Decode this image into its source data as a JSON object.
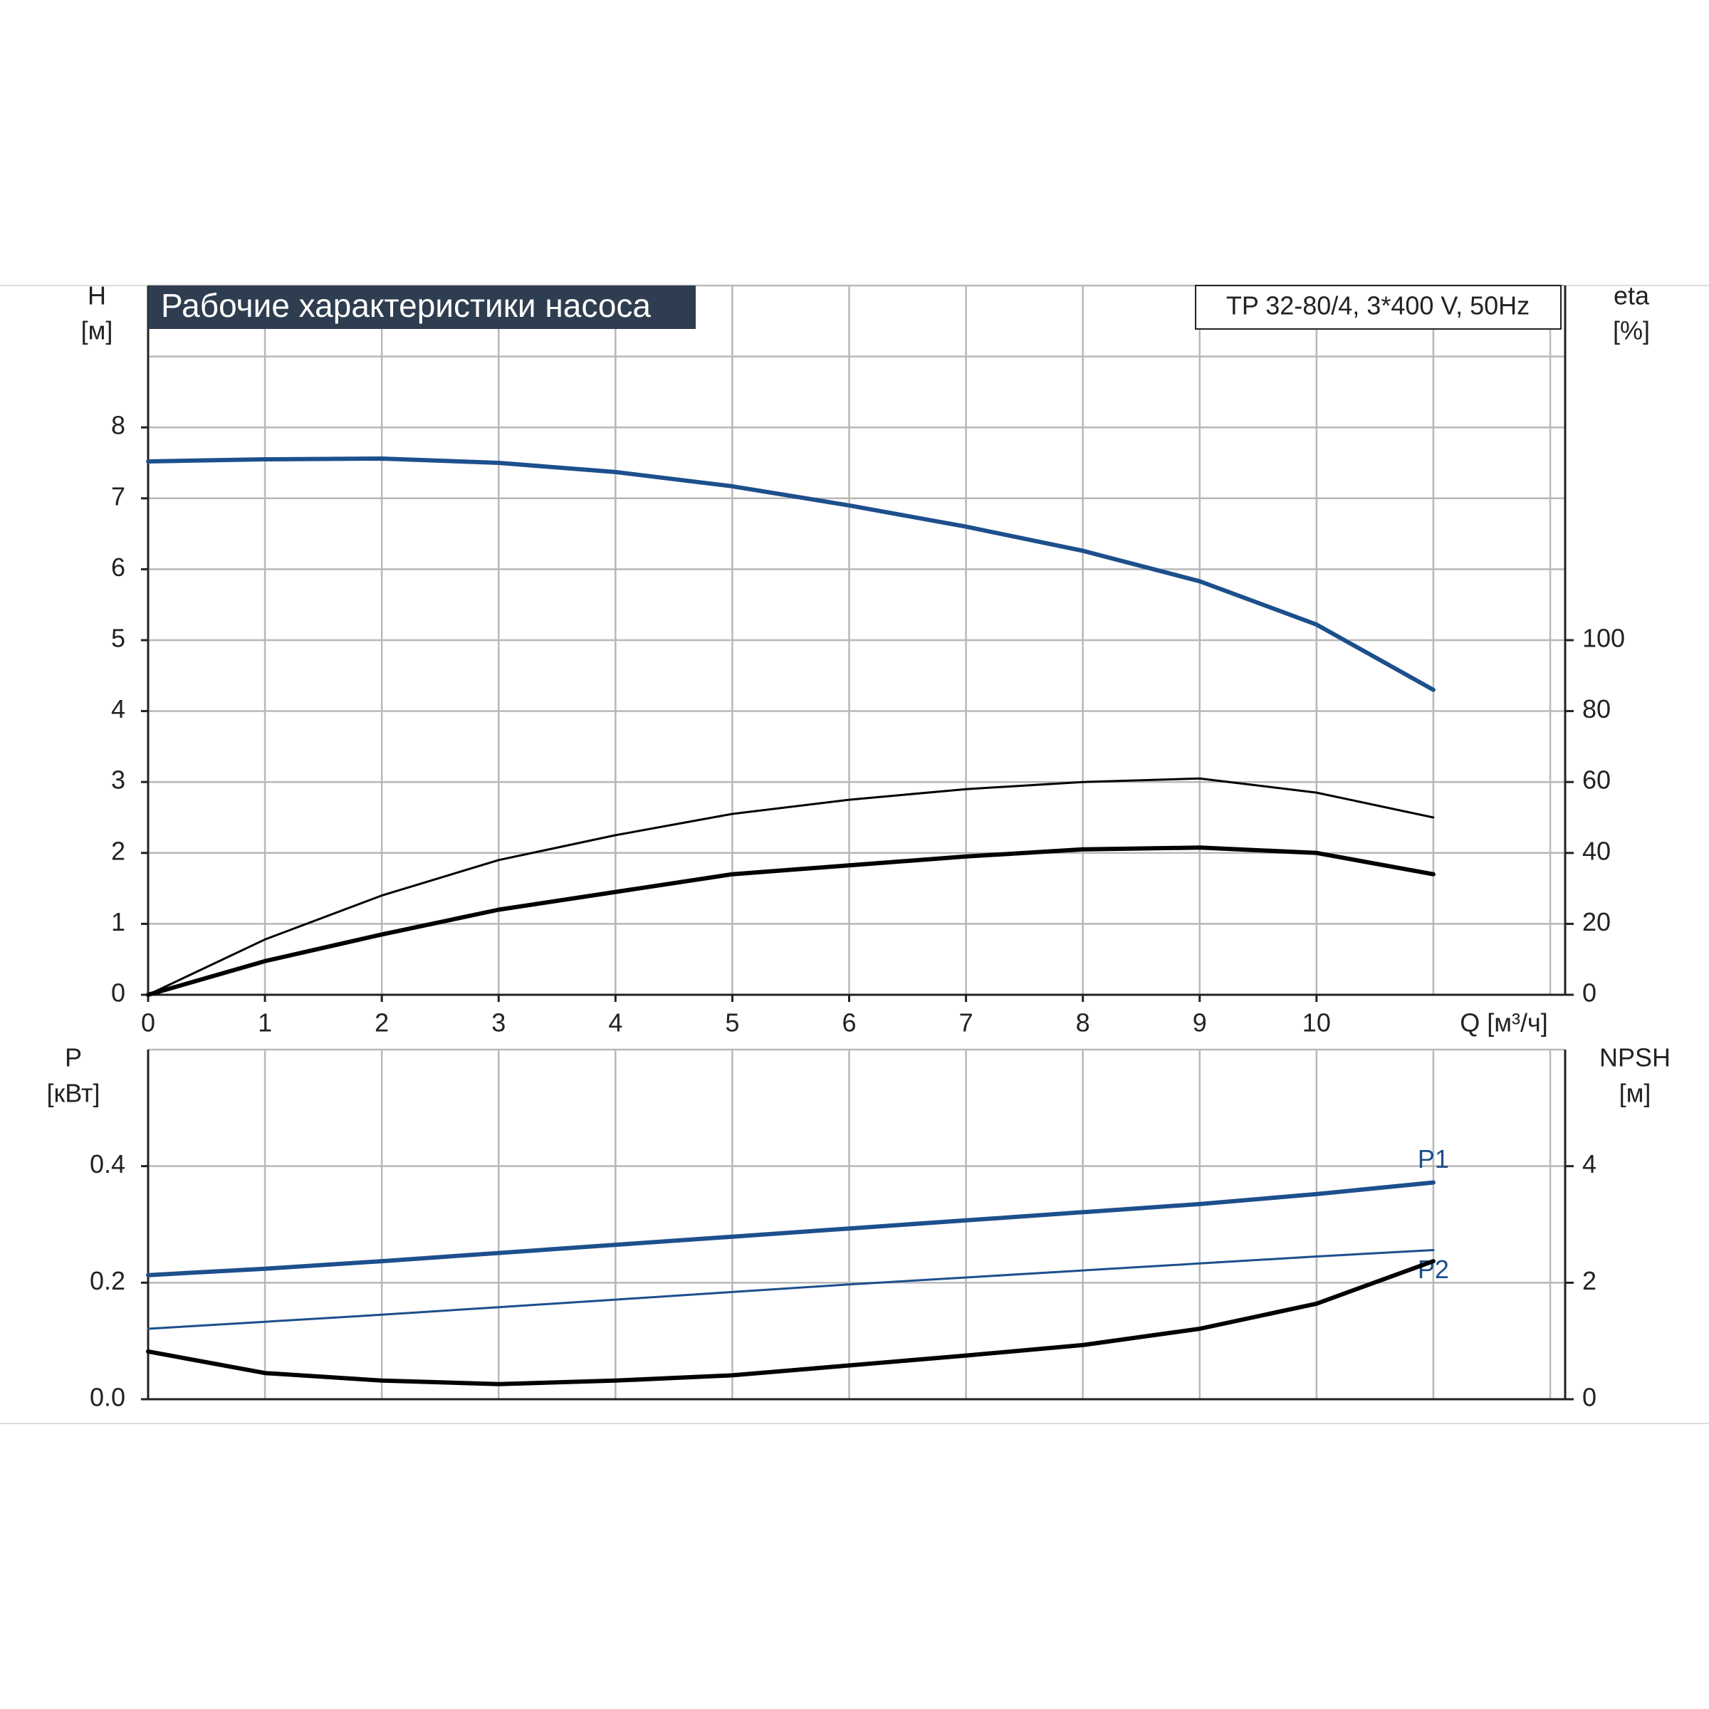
{
  "chart_data": [
    {
      "type": "line",
      "title": "Рабочие характеристики насоса",
      "subtitle": "TP 32-80/4, 3*400 V, 50Hz",
      "ylabel": "H",
      "yunit": "[м]",
      "y2label": "eta",
      "y2unit": "[%]",
      "xlabel": "Q [м³/ч]",
      "x": [
        0,
        1,
        2,
        3,
        4,
        5,
        6,
        7,
        8,
        9,
        10,
        11
      ],
      "xlim": [
        0,
        12
      ],
      "xticks": [
        0,
        1,
        2,
        3,
        4,
        5,
        6,
        7,
        8,
        9,
        10
      ],
      "xgrid": [
        1,
        2,
        3,
        4,
        5,
        6,
        7,
        8,
        9,
        10,
        11,
        12
      ],
      "ylim": [
        0,
        10
      ],
      "yticks": [
        0,
        1,
        2,
        3,
        4,
        5,
        6,
        7,
        8
      ],
      "ygrid": [
        1,
        2,
        3,
        4,
        5,
        6,
        7,
        8,
        9
      ],
      "y2lim": [
        0,
        200
      ],
      "y2ticks": [
        0,
        20,
        40,
        60,
        80,
        100
      ],
      "series": [
        {
          "color": "#1d4f8c",
          "width": 6,
          "values": [
            7.52,
            7.55,
            7.56,
            7.5,
            7.37,
            7.17,
            6.9,
            6.6,
            6.26,
            5.83,
            5.22,
            4.3
          ]
        },
        {
          "color": "#000000",
          "width": 3,
          "axis": "y2",
          "values": [
            0,
            15.6,
            28,
            38,
            45,
            51,
            55,
            58,
            60,
            61,
            57,
            50
          ]
        },
        {
          "color": "#000000",
          "width": 6,
          "axis": "y2",
          "values": [
            0,
            9.5,
            17,
            24,
            29,
            34,
            36.5,
            39,
            41,
            41.5,
            40,
            34
          ]
        }
      ]
    },
    {
      "type": "line",
      "ylabel": "P",
      "yunit": "[кВт]",
      "y2label": "NPSH",
      "y2unit": "[м]",
      "x": [
        0,
        1,
        2,
        3,
        4,
        5,
        6,
        7,
        8,
        9,
        10,
        11
      ],
      "xlim": [
        0,
        12
      ],
      "xgrid": [
        1,
        2,
        3,
        4,
        5,
        6,
        7,
        8,
        9,
        10,
        11,
        12
      ],
      "ylim": [
        0,
        0.6
      ],
      "yticks": [
        {
          "value": 0,
          "label": "0.0"
        },
        0.2,
        0.4
      ],
      "ygrid": [
        0.2,
        0.4
      ],
      "y2lim": [
        0,
        6
      ],
      "y2ticks": [
        0,
        2,
        4
      ],
      "series": [
        {
          "name": "P1",
          "color": "#1d4f8c",
          "width": 6,
          "values": [
            0.213,
            0.224,
            0.237,
            0.251,
            0.265,
            0.279,
            0.293,
            0.307,
            0.321,
            0.335,
            0.352,
            0.372
          ]
        },
        {
          "name": "P2",
          "color": "#1d4f8c",
          "width": 3,
          "values": [
            0.121,
            0.133,
            0.145,
            0.158,
            0.171,
            0.184,
            0.197,
            0.209,
            0.221,
            0.233,
            0.245,
            0.256
          ]
        },
        {
          "color": "#000000",
          "width": 6,
          "axis": "y2",
          "values": [
            0.82,
            0.45,
            0.32,
            0.26,
            0.32,
            0.41,
            0.58,
            0.75,
            0.93,
            1.21,
            1.64,
            2.37
          ]
        }
      ]
    }
  ]
}
